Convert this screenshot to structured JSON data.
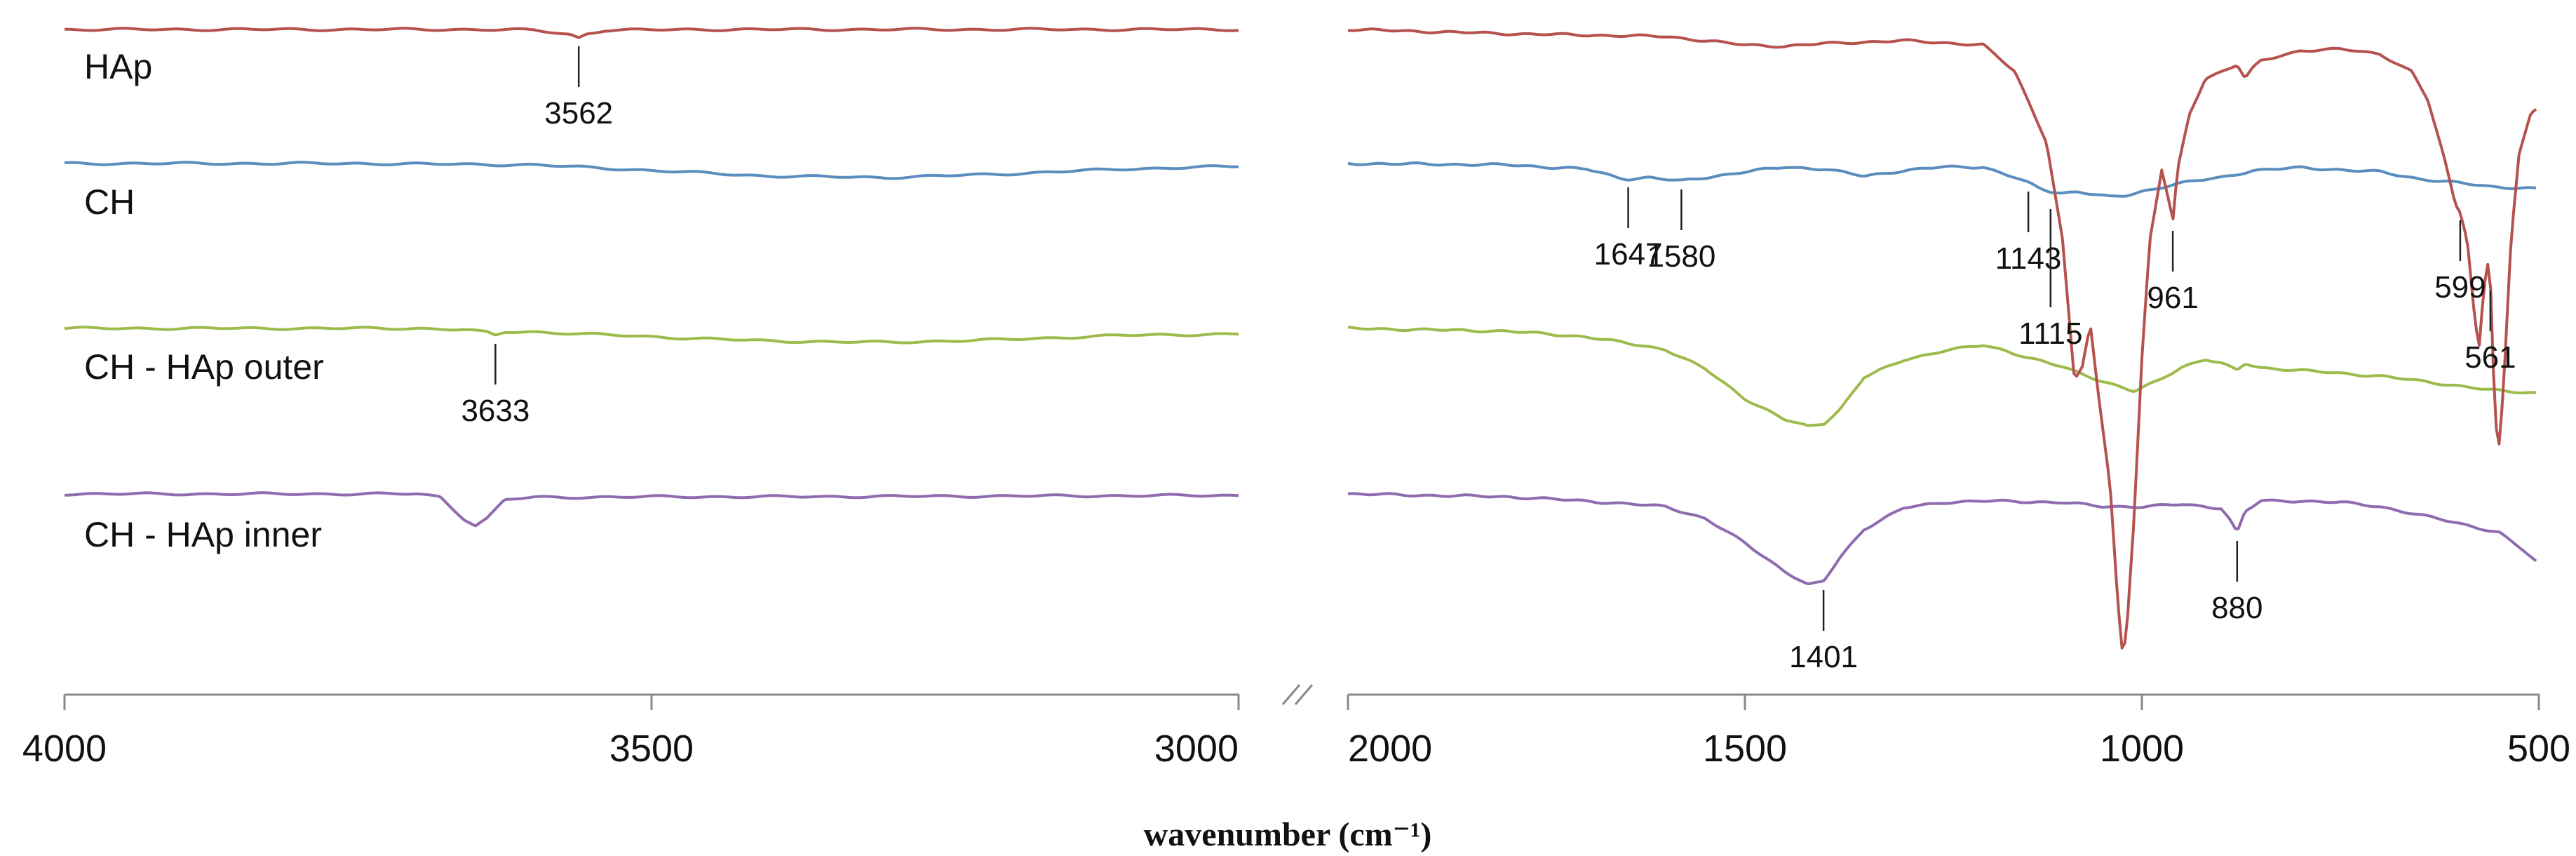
{
  "chart_data": {
    "type": "line",
    "title": "",
    "xlabel": "wavenumber (cm⁻¹)",
    "ylabel": "",
    "axis_break": true,
    "segments": [
      {
        "name": "high",
        "xlim": [
          4000,
          3000
        ],
        "ticks": [
          "4000",
          "3500",
          "3000"
        ]
      },
      {
        "name": "low",
        "xlim": [
          2000,
          500
        ],
        "ticks": [
          "2000",
          "1500",
          "1000",
          "500"
        ]
      }
    ],
    "series": [
      {
        "name": "HAp",
        "label": "HAp",
        "color": "#B5524E",
        "offset": 0,
        "high": [
          [
            4000,
            0
          ],
          [
            3650,
            0
          ],
          [
            3600,
            -1
          ],
          [
            3570,
            -7
          ],
          [
            3562,
            -12
          ],
          [
            3555,
            -6
          ],
          [
            3540,
            -1
          ],
          [
            3450,
            0
          ],
          [
            3000,
            0
          ]
        ],
        "low": [
          [
            2000,
            0
          ],
          [
            1800,
            -6
          ],
          [
            1600,
            -10
          ],
          [
            1500,
            -22
          ],
          [
            1450,
            -24
          ],
          [
            1400,
            -20
          ],
          [
            1300,
            -16
          ],
          [
            1200,
            -22
          ],
          [
            1160,
            -60
          ],
          [
            1120,
            -160
          ],
          [
            1100,
            -300
          ],
          [
            1085,
            -500
          ],
          [
            1075,
            -480
          ],
          [
            1065,
            -420
          ],
          [
            1055,
            -520
          ],
          [
            1040,
            -650
          ],
          [
            1030,
            -820
          ],
          [
            1025,
            -880
          ],
          [
            1020,
            -870
          ],
          [
            1010,
            -700
          ],
          [
            1000,
            -470
          ],
          [
            990,
            -300
          ],
          [
            975,
            -200
          ],
          [
            965,
            -250
          ],
          [
            961,
            -275
          ],
          [
            955,
            -200
          ],
          [
            940,
            -120
          ],
          [
            920,
            -70
          ],
          [
            900,
            -60
          ],
          [
            880,
            -50
          ],
          [
            870,
            -70
          ],
          [
            860,
            -55
          ],
          [
            850,
            -45
          ],
          [
            800,
            -30
          ],
          [
            750,
            -28
          ],
          [
            700,
            -35
          ],
          [
            660,
            -60
          ],
          [
            640,
            -100
          ],
          [
            620,
            -180
          ],
          [
            605,
            -250
          ],
          [
            599,
            -260
          ],
          [
            590,
            -300
          ],
          [
            580,
            -420
          ],
          [
            575,
            -450
          ],
          [
            570,
            -380
          ],
          [
            565,
            -330
          ],
          [
            561,
            -360
          ],
          [
            555,
            -560
          ],
          [
            550,
            -590
          ],
          [
            545,
            -520
          ],
          [
            535,
            -300
          ],
          [
            525,
            -180
          ],
          [
            510,
            -120
          ],
          [
            500,
            -110
          ]
        ]
      },
      {
        "name": "CH",
        "label": "CH",
        "color": "#5B8DBE",
        "offset": 0,
        "high": [
          [
            4000,
            0
          ],
          [
            3750,
            0
          ],
          [
            3600,
            -2
          ],
          [
            3500,
            -10
          ],
          [
            3400,
            -18
          ],
          [
            3300,
            -20
          ],
          [
            3200,
            -15
          ],
          [
            3100,
            -8
          ],
          [
            3000,
            -4
          ]
        ],
        "low": [
          [
            2000,
            0
          ],
          [
            1800,
            -2
          ],
          [
            1700,
            -8
          ],
          [
            1660,
            -20
          ],
          [
            1647,
            -22
          ],
          [
            1620,
            -20
          ],
          [
            1590,
            -24
          ],
          [
            1580,
            -25
          ],
          [
            1550,
            -20
          ],
          [
            1500,
            -12
          ],
          [
            1450,
            -5
          ],
          [
            1400,
            -8
          ],
          [
            1350,
            -18
          ],
          [
            1300,
            -10
          ],
          [
            1250,
            -5
          ],
          [
            1200,
            -5
          ],
          [
            1160,
            -20
          ],
          [
            1143,
            -28
          ],
          [
            1130,
            -35
          ],
          [
            1115,
            -40
          ],
          [
            1100,
            -42
          ],
          [
            1080,
            -40
          ],
          [
            1060,
            -44
          ],
          [
            1040,
            -48
          ],
          [
            1020,
            -46
          ],
          [
            1000,
            -40
          ],
          [
            980,
            -35
          ],
          [
            961,
            -30
          ],
          [
            940,
            -26
          ],
          [
            900,
            -20
          ],
          [
            860,
            -10
          ],
          [
            800,
            -6
          ],
          [
            700,
            -12
          ],
          [
            650,
            -22
          ],
          [
            599,
            -28
          ],
          [
            560,
            -33
          ],
          [
            500,
            -36
          ]
        ]
      },
      {
        "name": "CH - HAp outer",
        "label": "CH - HAp outer",
        "color": "#9DBB4C",
        "offset": 0,
        "high": [
          [
            4000,
            0
          ],
          [
            3700,
            0
          ],
          [
            3660,
            -2
          ],
          [
            3640,
            -6
          ],
          [
            3633,
            -10
          ],
          [
            3625,
            -5
          ],
          [
            3600,
            -5
          ],
          [
            3500,
            -12
          ],
          [
            3400,
            -18
          ],
          [
            3300,
            -20
          ],
          [
            3200,
            -16
          ],
          [
            3100,
            -10
          ],
          [
            3000,
            -8
          ]
        ],
        "low": [
          [
            2000,
            0
          ],
          [
            1800,
            -4
          ],
          [
            1700,
            -12
          ],
          [
            1600,
            -30
          ],
          [
            1550,
            -58
          ],
          [
            1500,
            -100
          ],
          [
            1450,
            -130
          ],
          [
            1420,
            -140
          ],
          [
            1400,
            -135
          ],
          [
            1380,
            -115
          ],
          [
            1350,
            -70
          ],
          [
            1300,
            -45
          ],
          [
            1250,
            -32
          ],
          [
            1200,
            -24
          ],
          [
            1170,
            -32
          ],
          [
            1143,
            -42
          ],
          [
            1100,
            -55
          ],
          [
            1050,
            -75
          ],
          [
            1010,
            -90
          ],
          [
            980,
            -75
          ],
          [
            950,
            -55
          ],
          [
            920,
            -44
          ],
          [
            900,
            -50
          ],
          [
            880,
            -60
          ],
          [
            870,
            -50
          ],
          [
            850,
            -56
          ],
          [
            800,
            -60
          ],
          [
            700,
            -68
          ],
          [
            650,
            -75
          ],
          [
            600,
            -82
          ],
          [
            561,
            -88
          ],
          [
            540,
            -90
          ],
          [
            500,
            -92
          ]
        ]
      },
      {
        "name": "CH - HAp inner",
        "label": "CH - HAp inner",
        "color": "#8F6BB0",
        "offset": 0,
        "high": [
          [
            4000,
            0
          ],
          [
            3700,
            0
          ],
          [
            3680,
            -4
          ],
          [
            3660,
            -35
          ],
          [
            3650,
            -45
          ],
          [
            3640,
            -35
          ],
          [
            3625,
            -8
          ],
          [
            3600,
            -5
          ],
          [
            3500,
            -4
          ],
          [
            3400,
            -4
          ],
          [
            3000,
            -2
          ]
        ],
        "low": [
          [
            2000,
            0
          ],
          [
            1800,
            -4
          ],
          [
            1700,
            -10
          ],
          [
            1600,
            -18
          ],
          [
            1550,
            -35
          ],
          [
            1500,
            -70
          ],
          [
            1450,
            -110
          ],
          [
            1420,
            -130
          ],
          [
            1401,
            -125
          ],
          [
            1380,
            -90
          ],
          [
            1350,
            -50
          ],
          [
            1300,
            -20
          ],
          [
            1250,
            -12
          ],
          [
            1200,
            -10
          ],
          [
            1100,
            -12
          ],
          [
            1050,
            -18
          ],
          [
            1000,
            -18
          ],
          [
            950,
            -15
          ],
          [
            900,
            -20
          ],
          [
            890,
            -35
          ],
          [
            880,
            -55
          ],
          [
            870,
            -25
          ],
          [
            850,
            -10
          ],
          [
            800,
            -10
          ],
          [
            750,
            -12
          ],
          [
            700,
            -18
          ],
          [
            650,
            -30
          ],
          [
            600,
            -42
          ],
          [
            550,
            -55
          ],
          [
            520,
            -80
          ],
          [
            500,
            -100
          ]
        ]
      }
    ],
    "annotations": [
      {
        "label": "3562",
        "series": "HAp",
        "segment": "high",
        "x": 3562
      },
      {
        "label": "3633",
        "series": "CH - HAp outer",
        "segment": "high",
        "x": 3633
      },
      {
        "label": "1647",
        "series": "CH",
        "segment": "low",
        "x": 1647
      },
      {
        "label": "1580",
        "series": "CH",
        "segment": "low",
        "x": 1580
      },
      {
        "label": "1143",
        "series": "CH",
        "segment": "low",
        "x": 1143
      },
      {
        "label": "1115",
        "series": "CH",
        "segment": "low",
        "x": 1115
      },
      {
        "label": "961",
        "series": "HAp",
        "segment": "low",
        "x": 961
      },
      {
        "label": "599",
        "series": "HAp",
        "segment": "low",
        "x": 599
      },
      {
        "label": "561",
        "series": "HAp",
        "segment": "low",
        "x": 561
      },
      {
        "label": "1401",
        "series": "CH - HAp inner",
        "segment": "low",
        "x": 1401
      },
      {
        "label": "880",
        "series": "CH - HAp inner",
        "segment": "low",
        "x": 880
      }
    ]
  }
}
